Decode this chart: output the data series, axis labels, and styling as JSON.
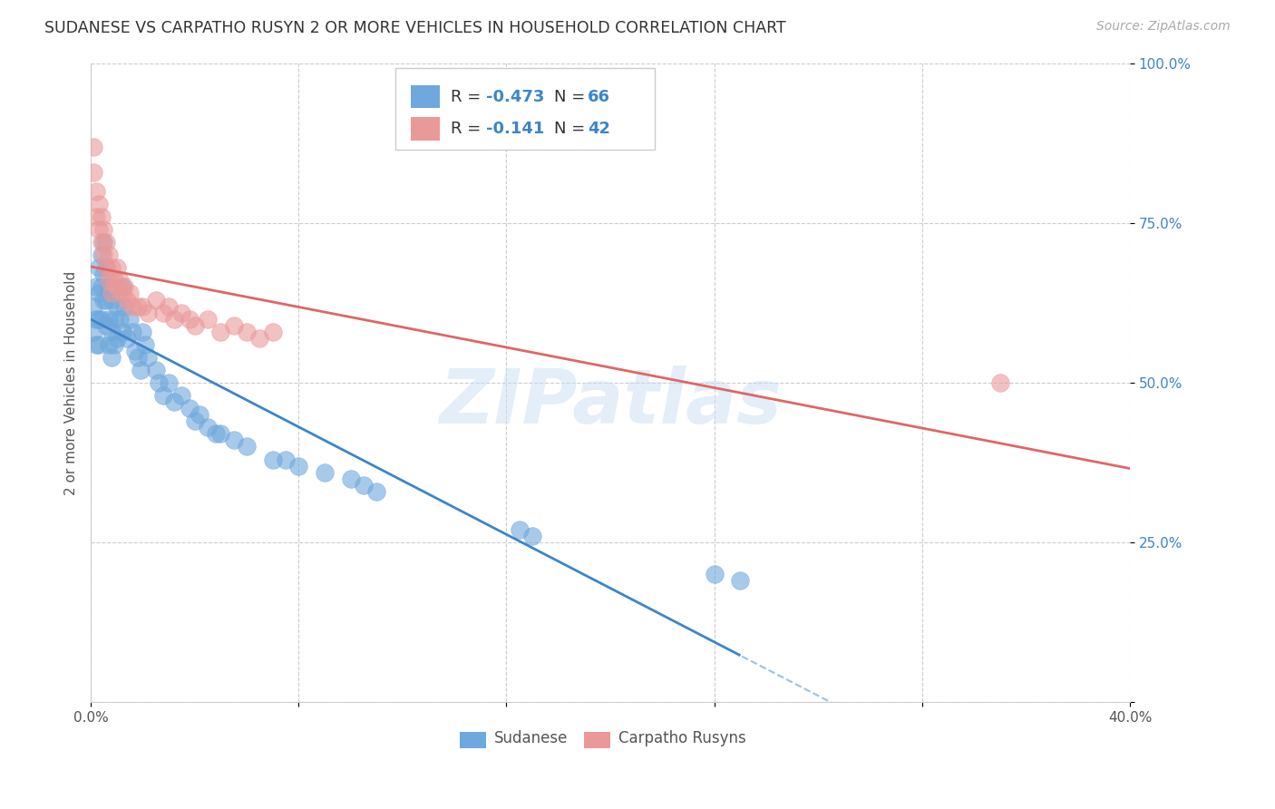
{
  "title": "SUDANESE VS CARPATHO RUSYN 2 OR MORE VEHICLES IN HOUSEHOLD CORRELATION CHART",
  "source": "Source: ZipAtlas.com",
  "ylabel": "2 or more Vehicles in Household",
  "xlim": [
    0.0,
    0.4
  ],
  "ylim": [
    0.0,
    1.0
  ],
  "ytick_values": [
    0.0,
    0.25,
    0.5,
    0.75,
    1.0
  ],
  "ytick_labels": [
    "",
    "25.0%",
    "50.0%",
    "75.0%",
    "100.0%"
  ],
  "xtick_values": [
    0.0,
    0.08,
    0.16,
    0.24,
    0.32,
    0.4
  ],
  "xtick_labels": [
    "0.0%",
    "",
    "",
    "",
    "",
    "40.0%"
  ],
  "legend_r1": "-0.473",
  "legend_n1": "66",
  "legend_r2": "-0.141",
  "legend_n2": "42",
  "watermark": "ZIPatlas",
  "blue_color": "#6fa8dc",
  "pink_color": "#ea9999",
  "blue_line_color": "#3d85c8",
  "pink_line_color": "#e06666",
  "grid_color": "#cccccc",
  "title_color": "#333333",
  "source_color": "#aaaaaa",
  "label_color": "#555555",
  "axis_num_color": "#3d85c8",
  "sudanese_x": [
    0.001,
    0.001,
    0.002,
    0.002,
    0.002,
    0.003,
    0.003,
    0.003,
    0.003,
    0.004,
    0.004,
    0.004,
    0.005,
    0.005,
    0.005,
    0.006,
    0.006,
    0.006,
    0.007,
    0.007,
    0.007,
    0.008,
    0.008,
    0.008,
    0.009,
    0.009,
    0.01,
    0.01,
    0.011,
    0.012,
    0.012,
    0.013,
    0.014,
    0.015,
    0.016,
    0.017,
    0.018,
    0.019,
    0.02,
    0.021,
    0.022,
    0.025,
    0.026,
    0.028,
    0.03,
    0.032,
    0.035,
    0.038,
    0.04,
    0.042,
    0.045,
    0.048,
    0.05,
    0.055,
    0.06,
    0.07,
    0.075,
    0.08,
    0.09,
    0.1,
    0.105,
    0.11,
    0.165,
    0.17,
    0.24,
    0.25
  ],
  "sudanese_y": [
    0.62,
    0.58,
    0.65,
    0.6,
    0.56,
    0.68,
    0.64,
    0.6,
    0.56,
    0.7,
    0.65,
    0.6,
    0.72,
    0.67,
    0.63,
    0.68,
    0.63,
    0.59,
    0.65,
    0.6,
    0.56,
    0.63,
    0.58,
    0.54,
    0.6,
    0.56,
    0.62,
    0.57,
    0.6,
    0.65,
    0.58,
    0.62,
    0.57,
    0.6,
    0.58,
    0.55,
    0.54,
    0.52,
    0.58,
    0.56,
    0.54,
    0.52,
    0.5,
    0.48,
    0.5,
    0.47,
    0.48,
    0.46,
    0.44,
    0.45,
    0.43,
    0.42,
    0.42,
    0.41,
    0.4,
    0.38,
    0.38,
    0.37,
    0.36,
    0.35,
    0.34,
    0.33,
    0.27,
    0.26,
    0.2,
    0.19
  ],
  "carpatho_x": [
    0.001,
    0.001,
    0.002,
    0.002,
    0.003,
    0.003,
    0.004,
    0.004,
    0.005,
    0.005,
    0.006,
    0.006,
    0.007,
    0.007,
    0.008,
    0.008,
    0.009,
    0.01,
    0.01,
    0.011,
    0.012,
    0.013,
    0.014,
    0.015,
    0.016,
    0.018,
    0.02,
    0.022,
    0.025,
    0.028,
    0.03,
    0.032,
    0.035,
    0.038,
    0.04,
    0.045,
    0.05,
    0.055,
    0.06,
    0.065,
    0.07,
    0.35
  ],
  "carpatho_y": [
    0.87,
    0.83,
    0.8,
    0.76,
    0.78,
    0.74,
    0.76,
    0.72,
    0.74,
    0.7,
    0.72,
    0.68,
    0.7,
    0.66,
    0.68,
    0.64,
    0.66,
    0.68,
    0.65,
    0.66,
    0.64,
    0.65,
    0.63,
    0.64,
    0.62,
    0.62,
    0.62,
    0.61,
    0.63,
    0.61,
    0.62,
    0.6,
    0.61,
    0.6,
    0.59,
    0.6,
    0.58,
    0.59,
    0.58,
    0.57,
    0.58,
    0.5
  ]
}
